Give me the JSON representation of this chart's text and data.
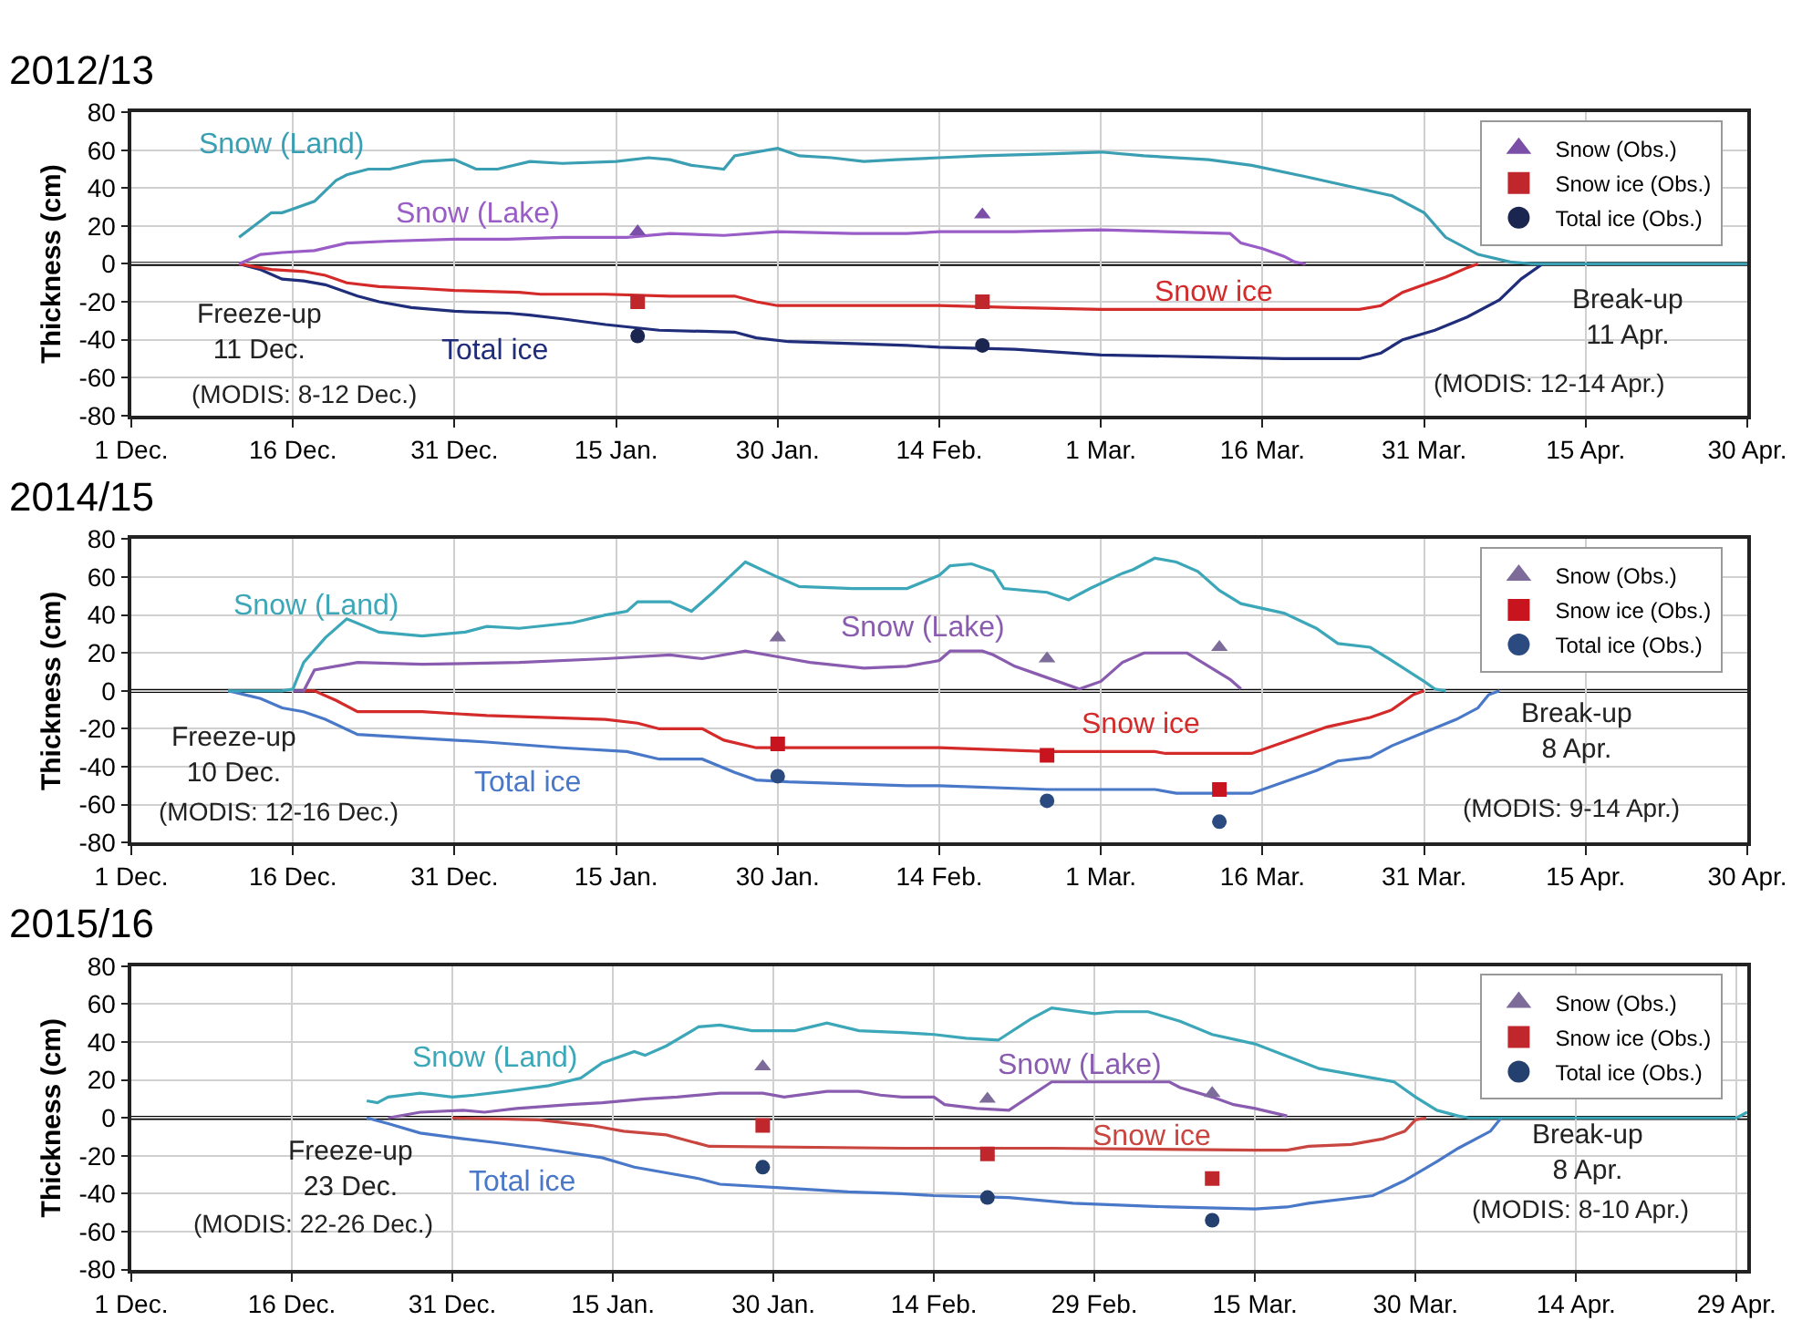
{
  "chart_data": [
    {
      "type": "line",
      "title": "2012/13",
      "ylabel": "Thickness (cm)",
      "xlim": [
        "2012-12-01",
        "2013-04-30"
      ],
      "ylim": [
        -80,
        80
      ],
      "xticks": [
        {
          "value": "2012-12-01",
          "label": "1 Dec."
        },
        {
          "value": "2012-12-16",
          "label": "16 Dec."
        },
        {
          "value": "2012-12-31",
          "label": "31 Dec."
        },
        {
          "value": "2013-01-15",
          "label": "15 Jan."
        },
        {
          "value": "2013-01-30",
          "label": "30 Jan."
        },
        {
          "value": "2013-02-14",
          "label": "14 Feb."
        },
        {
          "value": "2013-03-01",
          "label": "1 Mar."
        },
        {
          "value": "2013-03-16",
          "label": "16 Mar."
        },
        {
          "value": "2013-03-31",
          "label": "31 Mar."
        },
        {
          "value": "2013-04-15",
          "label": "15 Apr."
        },
        {
          "value": "2013-04-30",
          "label": "30 Apr."
        }
      ],
      "yticks": [
        -80,
        -60,
        -40,
        -20,
        0,
        20,
        40,
        60,
        80
      ],
      "grid": true,
      "legend": "top right",
      "ref_lines": [
        {
          "axis": "y",
          "value": 0,
          "color": "#000000"
        }
      ],
      "annotations": [
        "Snow (Land)",
        "Snow (Lake)",
        "Total ice",
        "Snow ice",
        "Freeze-up\n11 Dec.",
        "(MODIS: 8-12 Dec.)",
        "Break-up\n11 Apr.",
        "(MODIS: 12-14 Apr.)"
      ],
      "series": [
        {
          "color": "#3a9fb3",
          "x": [
            "2012-12-11",
            "2012-12-14",
            "2012-12-15",
            "2012-12-16",
            "2012-12-18",
            "2012-12-20",
            "2012-12-21",
            "2012-12-23",
            "2012-12-25",
            "2012-12-28",
            "2012-12-31",
            "2013-01-02",
            "2013-01-04",
            "2013-01-07",
            "2013-01-10",
            "2013-01-15",
            "2013-01-18",
            "2013-01-20",
            "2013-01-22",
            "2013-01-25",
            "2013-01-26",
            "2013-01-30",
            "2013-02-01",
            "2013-02-04",
            "2013-02-07",
            "2013-02-10",
            "2013-02-14",
            "2013-02-18",
            "2013-02-24",
            "2013-03-01",
            "2013-03-05",
            "2013-03-11",
            "2013-03-15",
            "2013-03-20",
            "2013-03-24",
            "2013-03-28",
            "2013-03-31",
            "2013-04-02",
            "2013-04-05",
            "2013-04-08",
            "2013-04-10",
            "2013-04-22",
            "2013-04-30"
          ],
          "values": [
            14,
            27,
            27,
            29,
            33,
            44,
            47,
            50,
            50,
            54,
            55,
            50,
            50,
            54,
            53,
            54,
            56,
            55,
            52,
            50,
            57,
            61,
            57,
            56,
            54,
            55,
            56,
            57,
            58,
            59,
            57,
            55,
            52,
            46,
            41,
            36,
            27,
            14,
            5,
            1,
            0,
            0,
            0
          ]
        },
        {
          "color": "#9a5cc6",
          "x": [
            "2012-12-11",
            "2012-12-13",
            "2012-12-15",
            "2012-12-18",
            "2012-12-21",
            "2012-12-25",
            "2012-12-31",
            "2013-01-05",
            "2013-01-10",
            "2013-01-16",
            "2013-01-20",
            "2013-01-25",
            "2013-01-30",
            "2013-02-06",
            "2013-02-11",
            "2013-02-14",
            "2013-02-21",
            "2013-03-01",
            "2013-03-07",
            "2013-03-13",
            "2013-03-14",
            "2013-03-16",
            "2013-03-18",
            "2013-03-19",
            "2013-03-20"
          ],
          "values": [
            0,
            5,
            6,
            7,
            11,
            12,
            13,
            13,
            14,
            14,
            16,
            15,
            17,
            16,
            16,
            17,
            17,
            18,
            17,
            16,
            11,
            8,
            4,
            1,
            0
          ]
        },
        {
          "color": "#d42a2a",
          "x": [
            "2012-12-11",
            "2012-12-14",
            "2012-12-17",
            "2012-12-19",
            "2012-12-21",
            "2012-12-24",
            "2012-12-28",
            "2012-12-31",
            "2013-01-06",
            "2013-01-08",
            "2013-01-14",
            "2013-01-20",
            "2013-01-26",
            "2013-01-28",
            "2013-01-30",
            "2013-02-06",
            "2013-02-11",
            "2013-02-14",
            "2013-02-21",
            "2013-03-01",
            "2013-03-10",
            "2013-03-25",
            "2013-03-27",
            "2013-03-29",
            "2013-03-31",
            "2013-04-02",
            "2013-04-04",
            "2013-04-05"
          ],
          "values": [
            0,
            -3,
            -4,
            -6,
            -10,
            -12,
            -13,
            -14,
            -15,
            -16,
            -16,
            -17,
            -17,
            -20,
            -22,
            -22,
            -22,
            -22,
            -23,
            -24,
            -24,
            -24,
            -22,
            -15,
            -11,
            -7,
            -2,
            0
          ]
        },
        {
          "color": "#1f2d7a",
          "x": [
            "2012-12-11",
            "2012-12-13",
            "2012-12-15",
            "2012-12-17",
            "2012-12-19",
            "2012-12-22",
            "2012-12-24",
            "2012-12-27",
            "2012-12-31",
            "2013-01-05",
            "2013-01-07",
            "2013-01-10",
            "2013-01-14",
            "2013-01-19",
            "2013-01-26",
            "2013-01-28",
            "2013-01-31",
            "2013-02-06",
            "2013-02-11",
            "2013-02-14",
            "2013-02-21",
            "2013-03-01",
            "2013-03-10",
            "2013-03-18",
            "2013-03-25",
            "2013-03-27",
            "2013-03-29",
            "2013-04-01",
            "2013-04-04",
            "2013-04-07",
            "2013-04-09",
            "2013-04-11"
          ],
          "values": [
            0,
            -3,
            -8,
            -9,
            -11,
            -17,
            -20,
            -23,
            -25,
            -26,
            -27,
            -29,
            -32,
            -35,
            -36,
            -39,
            -41,
            -42,
            -43,
            -44,
            -45,
            -48,
            -49,
            -50,
            -50,
            -47,
            -40,
            -35,
            -28,
            -19,
            -8,
            0
          ]
        },
        {
          "type": "scatter",
          "name": "Snow (Obs.)",
          "color": "#7b4fa8",
          "marker": "triangle",
          "x": [
            "2013-01-17",
            "2013-02-18"
          ],
          "values": [
            17,
            26
          ]
        },
        {
          "type": "scatter",
          "name": "Snow ice (Obs.)",
          "color": "#c0272d",
          "marker": "square",
          "x": [
            "2013-01-17",
            "2013-02-18"
          ],
          "values": [
            -20,
            -20
          ]
        },
        {
          "type": "scatter",
          "name": "Total ice (Obs.)",
          "color": "#1a2550",
          "marker": "circle",
          "x": [
            "2013-01-17",
            "2013-02-18"
          ],
          "values": [
            -38,
            -43
          ]
        }
      ]
    },
    {
      "type": "line",
      "title": "2014/15",
      "ylabel": "Thickness (cm)",
      "xlim": [
        "2014-12-01",
        "2015-04-30"
      ],
      "ylim": [
        -80,
        80
      ],
      "xticks": [
        {
          "value": "2014-12-01",
          "label": "1 Dec."
        },
        {
          "value": "2014-12-16",
          "label": "16 Dec."
        },
        {
          "value": "2014-12-31",
          "label": "31 Dec."
        },
        {
          "value": "2015-01-15",
          "label": "15 Jan."
        },
        {
          "value": "2015-01-30",
          "label": "30 Jan."
        },
        {
          "value": "2015-02-14",
          "label": "14 Feb."
        },
        {
          "value": "2015-03-01",
          "label": "1 Mar."
        },
        {
          "value": "2015-03-16",
          "label": "16 Mar."
        },
        {
          "value": "2015-03-31",
          "label": "31 Mar."
        },
        {
          "value": "2015-04-15",
          "label": "15 Apr."
        },
        {
          "value": "2015-04-30",
          "label": "30 Apr."
        }
      ],
      "yticks": [
        -80,
        -60,
        -40,
        -20,
        0,
        20,
        40,
        60,
        80
      ],
      "grid": true,
      "legend": "top right",
      "ref_lines": [
        {
          "axis": "y",
          "value": 0,
          "color": "#000000"
        }
      ],
      "annotations": [
        "Snow (Land)",
        "Snow (Lake)",
        "Total ice",
        "Snow ice",
        "Freeze-up\n10 Dec.",
        "(MODIS: 12-16 Dec.)",
        "Break-up\n8 Apr.",
        "(MODIS: 9-14 Apr.)"
      ],
      "series": [
        {
          "color": "#3ba7b8",
          "x": [
            "2014-12-10",
            "2014-12-15",
            "2014-12-16",
            "2014-12-17",
            "2014-12-19",
            "2014-12-21",
            "2014-12-24",
            "2014-12-28",
            "2015-01-01",
            "2015-01-03",
            "2015-01-06",
            "2015-01-11",
            "2015-01-14",
            "2015-01-16",
            "2015-01-17",
            "2015-01-20",
            "2015-01-22",
            "2015-01-24",
            "2015-01-27",
            "2015-01-30",
            "2015-02-01",
            "2015-02-06",
            "2015-02-11",
            "2015-02-14",
            "2015-02-15",
            "2015-02-17",
            "2015-02-19",
            "2015-02-20",
            "2015-02-24",
            "2015-02-26",
            "2015-02-28",
            "2015-03-03",
            "2015-03-04",
            "2015-03-06",
            "2015-03-08",
            "2015-03-10",
            "2015-03-12",
            "2015-03-14",
            "2015-03-18",
            "2015-03-21",
            "2015-03-23",
            "2015-03-26",
            "2015-03-28",
            "2015-03-31",
            "2015-04-01",
            "2015-04-02"
          ],
          "values": [
            0,
            0,
            1,
            15,
            28,
            38,
            31,
            29,
            31,
            34,
            33,
            36,
            40,
            42,
            47,
            47,
            42,
            52,
            68,
            60,
            55,
            54,
            54,
            61,
            66,
            67,
            63,
            54,
            52,
            48,
            54,
            62,
            64,
            70,
            68,
            63,
            53,
            46,
            41,
            33,
            25,
            23,
            16,
            5,
            1,
            0
          ]
        },
        {
          "color": "#8a5cb0",
          "x": [
            "2014-12-16",
            "2014-12-17",
            "2014-12-18",
            "2014-12-22",
            "2014-12-28",
            "2015-01-06",
            "2015-01-14",
            "2015-01-20",
            "2015-01-23",
            "2015-01-27",
            "2015-01-31",
            "2015-02-02",
            "2015-02-07",
            "2015-02-11",
            "2015-02-14",
            "2015-02-15",
            "2015-02-18",
            "2015-02-19",
            "2015-02-21",
            "2015-02-23",
            "2015-02-27",
            "2015-03-01",
            "2015-03-03",
            "2015-03-05",
            "2015-03-09",
            "2015-03-11",
            "2015-03-13",
            "2015-03-14"
          ],
          "values": [
            0,
            0,
            11,
            15,
            14,
            15,
            17,
            19,
            17,
            21,
            17,
            15,
            12,
            13,
            16,
            21,
            21,
            19,
            13,
            9,
            1,
            5,
            15,
            20,
            20,
            13,
            6,
            1
          ]
        },
        {
          "color": "#d42a2a",
          "x": [
            "2014-12-17",
            "2014-12-18",
            "2014-12-20",
            "2014-12-22",
            "2014-12-28",
            "2015-01-03",
            "2015-01-14",
            "2015-01-17",
            "2015-01-19",
            "2015-01-23",
            "2015-01-25",
            "2015-01-28",
            "2015-02-11",
            "2015-02-14",
            "2015-02-24",
            "2015-03-06",
            "2015-03-07",
            "2015-03-15",
            "2015-03-18",
            "2015-03-22",
            "2015-03-26",
            "2015-03-28",
            "2015-03-30",
            "2015-03-31"
          ],
          "values": [
            0,
            0,
            -5,
            -11,
            -11,
            -13,
            -15,
            -17,
            -20,
            -20,
            -26,
            -30,
            -30,
            -30,
            -32,
            -32,
            -33,
            -33,
            -27,
            -19,
            -14,
            -10,
            -2,
            0
          ]
        },
        {
          "color": "#4a78c8",
          "x": [
            "2014-12-10",
            "2014-12-13",
            "2014-12-15",
            "2014-12-17",
            "2014-12-19",
            "2014-12-22",
            "2014-12-28",
            "2015-01-03",
            "2015-01-10",
            "2015-01-16",
            "2015-01-19",
            "2015-01-23",
            "2015-01-26",
            "2015-01-28",
            "2015-01-31",
            "2015-02-11",
            "2015-02-14",
            "2015-02-24",
            "2015-03-06",
            "2015-03-08",
            "2015-03-15",
            "2015-03-18",
            "2015-03-21",
            "2015-03-23",
            "2015-03-26",
            "2015-03-28",
            "2015-03-31",
            "2015-04-03",
            "2015-04-05",
            "2015-04-06",
            "2015-04-07"
          ],
          "values": [
            0,
            -4,
            -9,
            -11,
            -15,
            -23,
            -25,
            -27,
            -30,
            -32,
            -36,
            -36,
            -43,
            -47,
            -48,
            -50,
            -50,
            -52,
            -52,
            -54,
            -54,
            -48,
            -42,
            -37,
            -35,
            -29,
            -22,
            -15,
            -9,
            -2,
            0
          ]
        },
        {
          "type": "scatter",
          "name": "Snow (Obs.)",
          "color": "#7d6b99",
          "marker": "triangle",
          "x": [
            "2015-01-30",
            "2015-02-24",
            "2015-03-12"
          ],
          "values": [
            28,
            17,
            23
          ]
        },
        {
          "type": "scatter",
          "name": "Snow ice (Obs.)",
          "color": "#c8141e",
          "marker": "square",
          "x": [
            "2015-01-30",
            "2015-02-24",
            "2015-03-12"
          ],
          "values": [
            -28,
            -34,
            -52
          ]
        },
        {
          "type": "scatter",
          "name": "Total ice (Obs.)",
          "color": "#2a4a80",
          "marker": "circle",
          "x": [
            "2015-01-30",
            "2015-02-24",
            "2015-03-12"
          ],
          "values": [
            -45,
            -58,
            -69
          ]
        }
      ]
    },
    {
      "type": "line",
      "title": "2015/16",
      "ylabel": "Thickness (cm)",
      "xlim": [
        "2015-12-01",
        "2016-04-30"
      ],
      "ylim": [
        -80,
        80
      ],
      "xticks": [
        {
          "value": "2015-12-01",
          "label": "1 Dec."
        },
        {
          "value": "2015-12-16",
          "label": "16 Dec."
        },
        {
          "value": "2015-12-31",
          "label": "31 Dec."
        },
        {
          "value": "2016-01-15",
          "label": "15 Jan."
        },
        {
          "value": "2016-01-30",
          "label": "30 Jan."
        },
        {
          "value": "2016-02-14",
          "label": "14 Feb."
        },
        {
          "value": "2016-02-29",
          "label": "29 Feb."
        },
        {
          "value": "2016-03-15",
          "label": "15 Mar."
        },
        {
          "value": "2016-03-30",
          "label": "30 Mar."
        },
        {
          "value": "2016-04-14",
          "label": "14 Apr."
        },
        {
          "value": "2016-04-29",
          "label": "29 Apr."
        }
      ],
      "yticks": [
        -80,
        -60,
        -40,
        -20,
        0,
        20,
        40,
        60,
        80
      ],
      "grid": true,
      "legend": "top right",
      "ref_lines": [
        {
          "axis": "y",
          "value": 0,
          "color": "#000000"
        }
      ],
      "annotations": [
        "Snow (Land)",
        "Snow (Lake)",
        "Total ice",
        "Snow ice",
        "Freeze-up\n23 Dec.",
        "(MODIS: 22-26 Dec.)",
        "Break-up\n8 Apr.",
        "(MODIS: 8-10 Apr.)"
      ],
      "series": [
        {
          "color": "#3ba7b8",
          "x": [
            "2015-12-23",
            "2015-12-24",
            "2015-12-25",
            "2015-12-28",
            "2015-12-31",
            "2016-01-02",
            "2016-01-05",
            "2016-01-09",
            "2016-01-12",
            "2016-01-14",
            "2016-01-17",
            "2016-01-18",
            "2016-01-20",
            "2016-01-23",
            "2016-01-25",
            "2016-01-28",
            "2016-02-01",
            "2016-02-04",
            "2016-02-07",
            "2016-02-11",
            "2016-02-14",
            "2016-02-17",
            "2016-02-20",
            "2016-02-23",
            "2016-02-25",
            "2016-02-29",
            "2016-03-02",
            "2016-03-05",
            "2016-03-08",
            "2016-03-11",
            "2016-03-15",
            "2016-03-21",
            "2016-03-24",
            "2016-03-28",
            "2016-03-30",
            "2016-04-01",
            "2016-04-03",
            "2016-04-04",
            "2016-04-29",
            "2016-04-30"
          ],
          "values": [
            9,
            8,
            11,
            13,
            11,
            12,
            14,
            17,
            21,
            29,
            35,
            33,
            38,
            48,
            49,
            46,
            46,
            50,
            46,
            45,
            44,
            42,
            41,
            52,
            58,
            55,
            56,
            56,
            51,
            44,
            39,
            26,
            23,
            19,
            11,
            4,
            1,
            0,
            0,
            3
          ]
        },
        {
          "color": "#8a5cb0",
          "x": [
            "2015-12-25",
            "2015-12-28",
            "2016-01-01",
            "2016-01-03",
            "2016-01-06",
            "2016-01-11",
            "2016-01-14",
            "2016-01-18",
            "2016-01-21",
            "2016-01-25",
            "2016-01-29",
            "2016-01-31",
            "2016-02-04",
            "2016-02-07",
            "2016-02-09",
            "2016-02-11",
            "2016-02-14",
            "2016-02-15",
            "2016-02-18",
            "2016-02-21",
            "2016-02-25",
            "2016-02-29",
            "2016-03-07",
            "2016-03-08",
            "2016-03-11",
            "2016-03-13",
            "2016-03-15",
            "2016-03-18"
          ],
          "values": [
            0,
            3,
            4,
            3,
            5,
            7,
            8,
            10,
            11,
            13,
            13,
            11,
            14,
            14,
            12,
            11,
            11,
            7,
            5,
            4,
            19,
            19,
            19,
            16,
            11,
            7,
            5,
            1
          ]
        },
        {
          "color": "#c9453f",
          "x": [
            "2015-12-31",
            "2016-01-08",
            "2016-01-13",
            "2016-01-16",
            "2016-01-20",
            "2016-01-22",
            "2016-01-24",
            "2016-02-11",
            "2016-02-14",
            "2016-02-25",
            "2016-03-15",
            "2016-03-18",
            "2016-03-20",
            "2016-03-24",
            "2016-03-27",
            "2016-03-29",
            "2016-03-30",
            "2016-03-31"
          ],
          "values": [
            0,
            -1,
            -4,
            -7,
            -9,
            -12,
            -15,
            -16,
            -16,
            -16,
            -17,
            -17,
            -15,
            -14,
            -11,
            -7,
            -1,
            0
          ]
        },
        {
          "color": "#4a78c8",
          "x": [
            "2015-12-23",
            "2015-12-25",
            "2015-12-28",
            "2016-01-01",
            "2016-01-04",
            "2016-01-08",
            "2016-01-14",
            "2016-01-17",
            "2016-01-20",
            "2016-01-23",
            "2016-01-25",
            "2016-01-31",
            "2016-02-06",
            "2016-02-11",
            "2016-02-14",
            "2016-02-21",
            "2016-02-27",
            "2016-03-07",
            "2016-03-15",
            "2016-03-18",
            "2016-03-20",
            "2016-03-26",
            "2016-03-29",
            "2016-04-01",
            "2016-04-03",
            "2016-04-06",
            "2016-04-07"
          ],
          "values": [
            0,
            -3,
            -8,
            -11,
            -13,
            -16,
            -21,
            -26,
            -29,
            -32,
            -35,
            -37,
            -39,
            -40,
            -41,
            -42,
            -45,
            -47,
            -48,
            -47,
            -45,
            -41,
            -33,
            -23,
            -16,
            -7,
            0
          ]
        },
        {
          "type": "scatter",
          "name": "Snow (Obs.)",
          "color": "#7d6b99",
          "marker": "triangle",
          "x": [
            "2016-01-29",
            "2016-02-19",
            "2016-03-11"
          ],
          "values": [
            27,
            10,
            13
          ]
        },
        {
          "type": "scatter",
          "name": "Snow ice (Obs.)",
          "color": "#c0272d",
          "marker": "square",
          "x": [
            "2016-01-29",
            "2016-02-19",
            "2016-03-11"
          ],
          "values": [
            -4,
            -19,
            -32
          ]
        },
        {
          "type": "scatter",
          "name": "Total ice (Obs.)",
          "color": "#24406e",
          "marker": "circle",
          "x": [
            "2016-01-29",
            "2016-02-19",
            "2016-03-11"
          ],
          "values": [
            -26,
            -42,
            -54
          ]
        }
      ]
    }
  ]
}
